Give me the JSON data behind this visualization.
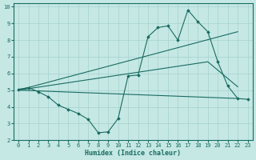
{
  "xlabel": "Humidex (Indice chaleur)",
  "xlim": [
    -0.5,
    23.5
  ],
  "ylim": [
    2,
    10.2
  ],
  "xticks": [
    0,
    1,
    2,
    3,
    4,
    5,
    6,
    7,
    8,
    9,
    10,
    11,
    12,
    13,
    14,
    15,
    16,
    17,
    18,
    19,
    20,
    21,
    22,
    23
  ],
  "yticks": [
    2,
    3,
    4,
    5,
    6,
    7,
    8,
    9,
    10
  ],
  "background_color": "#c5e8e5",
  "grid_color": "#aad4d0",
  "line_color": "#1a6b60",
  "line1_x": [
    0,
    1,
    2,
    3,
    4,
    5,
    6,
    7,
    8,
    9,
    10,
    11,
    12,
    13,
    14,
    15,
    16,
    17,
    18,
    19,
    20,
    21,
    22,
    23
  ],
  "line1_y": [
    5.05,
    5.15,
    4.9,
    4.6,
    4.1,
    3.85,
    3.6,
    3.25,
    2.45,
    2.5,
    3.3,
    5.85,
    5.9,
    8.2,
    8.75,
    8.85,
    8.0,
    9.8,
    9.1,
    8.5,
    6.7,
    5.25,
    4.5,
    4.45
  ],
  "line2_x": [
    0,
    22
  ],
  "line2_y": [
    5.0,
    4.5
  ],
  "line3_x": [
    0,
    19,
    22
  ],
  "line3_y": [
    5.0,
    6.7,
    5.2
  ],
  "line4_x": [
    0,
    22
  ],
  "line4_y": [
    5.0,
    8.5
  ]
}
